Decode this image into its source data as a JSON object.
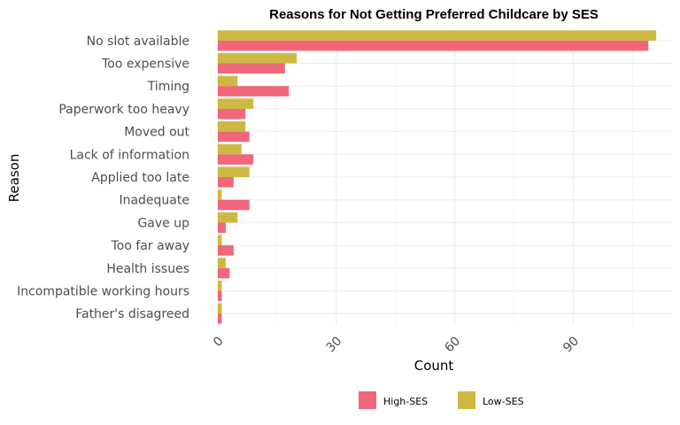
{
  "chart_data": {
    "type": "bar",
    "orientation": "horizontal",
    "title": "Reasons for Not Getting Preferred Childcare by SES",
    "xlabel": "Count",
    "ylabel": "Reason",
    "xlim": [
      0,
      115
    ],
    "xticks": [
      0,
      30,
      60,
      90
    ],
    "xtick_labels": [
      "0",
      "30",
      "60",
      "90"
    ],
    "grid": true,
    "legend_position": "bottom",
    "categories": [
      "No slot available",
      "Too expensive",
      "Timing",
      "Paperwork too heavy",
      "Moved out",
      "Lack of information",
      "Applied too late",
      "Inadequate",
      "Gave up",
      "Too far away",
      "Health issues",
      "Incompatible working hours",
      "Father's disagreed"
    ],
    "series": [
      {
        "name": "High-SES",
        "color": "#f0677a",
        "values": [
          109,
          17,
          18,
          7,
          8,
          9,
          4,
          8,
          2,
          4,
          3,
          1,
          1
        ]
      },
      {
        "name": "Low-SES",
        "color": "#cdb942",
        "values": [
          111,
          20,
          5,
          9,
          7,
          6,
          8,
          1,
          5,
          1,
          2,
          1,
          1
        ]
      }
    ]
  }
}
